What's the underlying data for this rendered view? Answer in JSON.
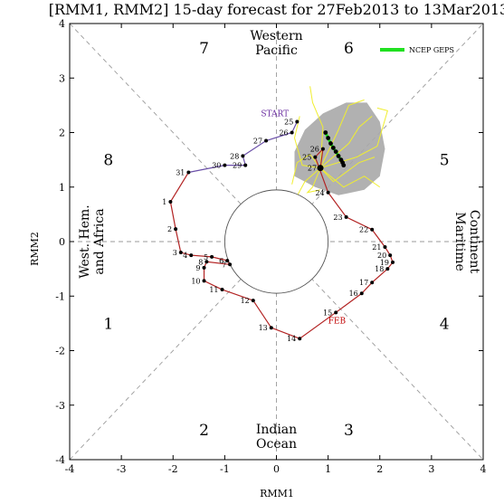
{
  "chart_data": {
    "type": "scatter",
    "title": "[RMM1, RMM2] 15-day forecast for 27Feb2013 to 13Mar2013",
    "xlabel": "RMM1",
    "ylabel": "RMM2",
    "xlim": [
      -4,
      4
    ],
    "ylim": [
      -4,
      4
    ],
    "xticks": [
      "-4",
      "-3",
      "-2",
      "-1",
      "0",
      "1",
      "2",
      "3",
      "4"
    ],
    "yticks": [
      "-4",
      "-3",
      "-2",
      "-1",
      "0",
      "1",
      "2",
      "3",
      "4"
    ],
    "grid": false,
    "legend_position": "top-right",
    "phases": [
      "1",
      "2",
      "3",
      "4",
      "5",
      "6",
      "7",
      "8"
    ],
    "regions": {
      "top": [
        "Western",
        "Pacific"
      ],
      "bottom": [
        "Indian",
        "Ocean"
      ],
      "left": [
        "West. Hem.",
        "and Africa"
      ],
      "right": [
        "Maritime",
        "Continent"
      ]
    },
    "legend": [
      "NCEP GEPS"
    ],
    "annotations": [
      "START",
      "FEB"
    ],
    "colors": {
      "observed_feb": "#b22222",
      "observed_jan": "#6a4fa8",
      "ensemble_member": "#f0ee30",
      "ensemble_mean": "#20e020",
      "spread": "#a8a8a8",
      "start_label": "#6a2ca0",
      "feb_label": "#c00000"
    },
    "observed_jan": [
      {
        "day": "25",
        "x": 0.4,
        "y": 2.2
      },
      {
        "day": "26",
        "x": 0.3,
        "y": 2.0
      },
      {
        "day": "27",
        "x": -0.2,
        "y": 1.85
      },
      {
        "day": "28",
        "x": -0.65,
        "y": 1.57
      },
      {
        "day": "29",
        "x": -0.6,
        "y": 1.4
      },
      {
        "day": "30",
        "x": -1.0,
        "y": 1.4
      },
      {
        "day": "31",
        "x": -1.7,
        "y": 1.27
      }
    ],
    "observed_feb": [
      {
        "day": "1",
        "x": -2.05,
        "y": 0.73
      },
      {
        "day": "2",
        "x": -1.95,
        "y": 0.23
      },
      {
        "day": "3",
        "x": -1.85,
        "y": -0.2
      },
      {
        "day": "4",
        "x": -1.65,
        "y": -0.25
      },
      {
        "day": "5",
        "x": -1.25,
        "y": -0.28
      },
      {
        "day": "6",
        "x": -0.95,
        "y": -0.35
      },
      {
        "day": "7",
        "x": -0.9,
        "y": -0.42
      },
      {
        "day": "8",
        "x": -1.35,
        "y": -0.37
      },
      {
        "day": "9",
        "x": -1.4,
        "y": -0.48
      },
      {
        "day": "10",
        "x": -1.4,
        "y": -0.72
      },
      {
        "day": "11",
        "x": -1.05,
        "y": -0.88
      },
      {
        "day": "12",
        "x": -0.45,
        "y": -1.08
      },
      {
        "day": "13",
        "x": -0.1,
        "y": -1.58
      },
      {
        "day": "14",
        "x": 0.45,
        "y": -1.78
      },
      {
        "day": "15",
        "x": 1.15,
        "y": -1.3
      },
      {
        "day": "16",
        "x": 1.65,
        "y": -0.95
      },
      {
        "day": "17",
        "x": 1.85,
        "y": -0.75
      },
      {
        "day": "18",
        "x": 2.15,
        "y": -0.5
      },
      {
        "day": "19",
        "x": 2.25,
        "y": -0.38
      },
      {
        "day": "20",
        "x": 2.2,
        "y": -0.25
      },
      {
        "day": "21",
        "x": 2.1,
        "y": -0.1
      },
      {
        "day": "22",
        "x": 1.85,
        "y": 0.22
      },
      {
        "day": "23",
        "x": 1.35,
        "y": 0.45
      },
      {
        "day": "24",
        "x": 1.0,
        "y": 0.9
      },
      {
        "day": "25",
        "x": 0.75,
        "y": 1.55
      },
      {
        "day": "26",
        "x": 0.9,
        "y": 1.7
      },
      {
        "day": "27",
        "x": 0.85,
        "y": 1.35
      }
    ],
    "forecast_mean": [
      {
        "x": 0.95,
        "y": 2.0
      },
      {
        "x": 1.0,
        "y": 1.9
      },
      {
        "x": 1.05,
        "y": 1.8
      },
      {
        "x": 1.1,
        "y": 1.72
      },
      {
        "x": 1.15,
        "y": 1.65
      },
      {
        "x": 1.2,
        "y": 1.57
      },
      {
        "x": 1.25,
        "y": 1.5
      },
      {
        "x": 1.28,
        "y": 1.45
      },
      {
        "x": 1.3,
        "y": 1.4
      }
    ],
    "spread_polygon": [
      [
        0.35,
        1.2
      ],
      [
        0.75,
        1.0
      ],
      [
        1.2,
        0.85
      ],
      [
        1.7,
        0.95
      ],
      [
        2.0,
        1.2
      ],
      [
        2.1,
        1.7
      ],
      [
        2.0,
        2.2
      ],
      [
        1.75,
        2.55
      ],
      [
        1.35,
        2.55
      ],
      [
        0.9,
        2.35
      ],
      [
        0.55,
        2.05
      ],
      [
        0.35,
        1.65
      ]
    ],
    "ensemble_members": [
      [
        [
          0.85,
          1.35
        ],
        [
          0.55,
          1.1
        ],
        [
          0.35,
          0.75
        ]
      ],
      [
        [
          0.85,
          1.35
        ],
        [
          0.65,
          1.6
        ],
        [
          0.4,
          1.45
        ],
        [
          0.3,
          1.05
        ]
      ],
      [
        [
          0.85,
          1.35
        ],
        [
          1.3,
          1.0
        ],
        [
          1.7,
          1.2
        ],
        [
          2.0,
          1.0
        ]
      ],
      [
        [
          0.85,
          1.35
        ],
        [
          1.4,
          1.8
        ],
        [
          1.6,
          2.1
        ],
        [
          1.85,
          2.3
        ]
      ],
      [
        [
          0.85,
          1.35
        ],
        [
          0.9,
          2.1
        ],
        [
          0.7,
          2.55
        ],
        [
          0.65,
          2.85
        ]
      ],
      [
        [
          0.85,
          1.35
        ],
        [
          1.2,
          2.05
        ],
        [
          1.4,
          2.5
        ],
        [
          1.7,
          2.6
        ]
      ],
      [
        [
          0.85,
          1.35
        ],
        [
          1.55,
          1.55
        ],
        [
          1.95,
          1.75
        ],
        [
          2.15,
          2.4
        ],
        [
          1.95,
          2.45
        ]
      ],
      [
        [
          0.85,
          1.35
        ],
        [
          0.5,
          1.4
        ],
        [
          0.35,
          1.9
        ],
        [
          0.45,
          2.3
        ]
      ],
      [
        [
          0.85,
          1.35
        ],
        [
          1.1,
          1.1
        ],
        [
          1.6,
          1.45
        ],
        [
          1.9,
          1.55
        ]
      ],
      [
        [
          0.85,
          1.35
        ],
        [
          0.7,
          1.0
        ],
        [
          0.6,
          0.9
        ],
        [
          0.85,
          0.95
        ]
      ]
    ]
  }
}
